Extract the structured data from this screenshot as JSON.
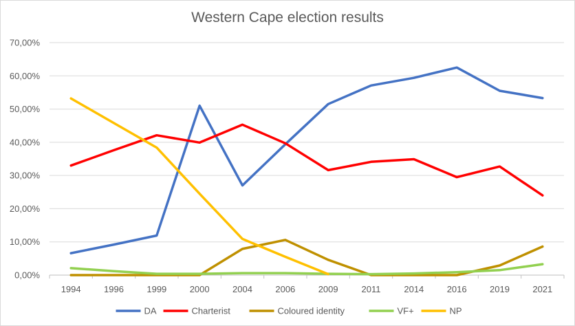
{
  "chart_data": {
    "type": "line",
    "title": "Western Cape election results",
    "xlabel": "",
    "ylabel": "",
    "categories": [
      "1994",
      "1996",
      "1999",
      "2000",
      "2004",
      "2006",
      "2009",
      "2011",
      "2014",
      "2016",
      "2019",
      "2021"
    ],
    "y_tick_labels": [
      "0,00%",
      "10,00%",
      "20,00%",
      "30,00%",
      "40,00%",
      "50,00%",
      "60,00%",
      "70,00%"
    ],
    "ylim": [
      0,
      70
    ],
    "y_unit": "percent",
    "grid": "horizontal",
    "legend_position": "bottom",
    "series": [
      {
        "name": "DA",
        "color": "#4472C4",
        "values": [
          6.6,
          9.2,
          11.9,
          51.0,
          27.0,
          39.4,
          51.5,
          57.1,
          59.4,
          62.5,
          55.5,
          53.3
        ]
      },
      {
        "name": "Charterist",
        "color": "#FF0000",
        "values": [
          33.0,
          37.6,
          42.1,
          39.9,
          45.3,
          39.7,
          31.6,
          34.1,
          34.9,
          29.5,
          32.7,
          24.0
        ]
      },
      {
        "name": "Coloured identity",
        "color": "#BF9000",
        "values": [
          0.0,
          0.0,
          0.0,
          0.0,
          7.9,
          10.6,
          4.6,
          0.0,
          0.0,
          0.0,
          2.9,
          8.6
        ]
      },
      {
        "name": "VF+",
        "color": "#92D050",
        "values": [
          2.1,
          1.2,
          0.4,
          0.4,
          0.6,
          0.6,
          0.4,
          0.3,
          0.5,
          0.9,
          1.5,
          3.3
        ]
      },
      {
        "name": "NP",
        "color": "#FFC000",
        "values": [
          53.2,
          45.8,
          38.4,
          24.5,
          10.9,
          5.5,
          0.3,
          null,
          null,
          null,
          null,
          null
        ]
      }
    ]
  }
}
